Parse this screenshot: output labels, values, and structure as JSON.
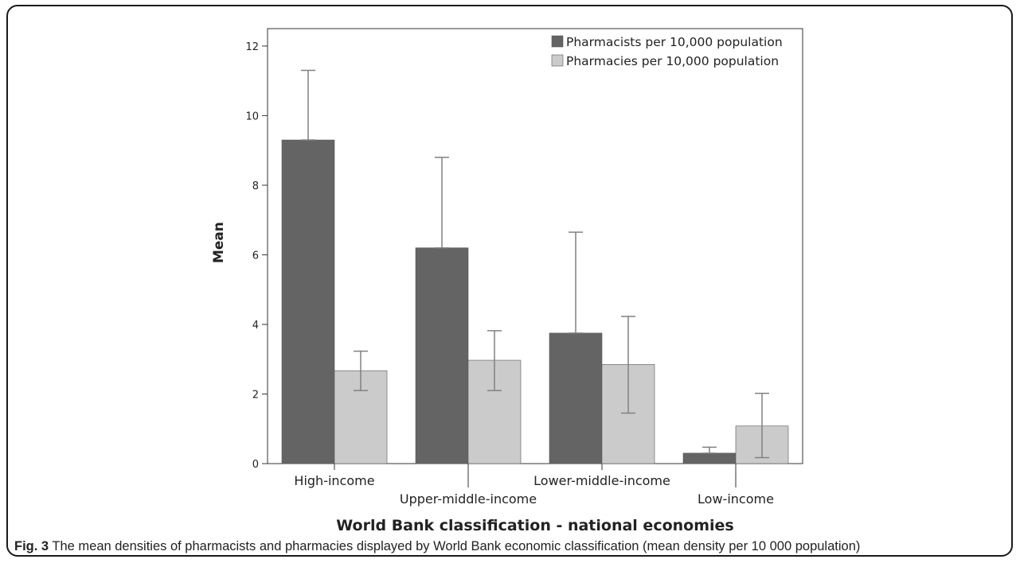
{
  "colors": {
    "pharmacists": "#646464",
    "pharmacies": "#cbcbcb",
    "axis": "#333333",
    "error_bar": "#808080"
  },
  "chart_data": {
    "type": "bar",
    "categories": [
      "High-income",
      "Upper-middle-income",
      "Lower-middle-income",
      "Low-income"
    ],
    "series": [
      {
        "name": "Pharmacists per 10,000 population",
        "values": [
          9.3,
          6.2,
          3.75,
          0.3
        ],
        "error_high": [
          11.3,
          8.8,
          6.65,
          0.47
        ],
        "error_low": [
          9.3,
          6.2,
          3.75,
          0.3
        ]
      },
      {
        "name": "Pharmacies per 10,000 population",
        "values": [
          2.67,
          2.97,
          2.85,
          1.08
        ],
        "error_high": [
          3.23,
          3.82,
          4.23,
          2.02
        ],
        "error_low": [
          2.1,
          2.1,
          1.45,
          0.17
        ]
      }
    ],
    "ylabel": "Mean",
    "xlabel": "World Bank classification - national economies",
    "ylim": [
      0,
      12.5
    ],
    "yticks": [
      0,
      2,
      4,
      6,
      8,
      10,
      12
    ],
    "legend_position": "top-right"
  },
  "caption": {
    "label": "Fig. 3",
    "text": " The mean densities of pharmacists and pharmacies displayed by World Bank economic classification (mean density per 10 000 population)"
  }
}
